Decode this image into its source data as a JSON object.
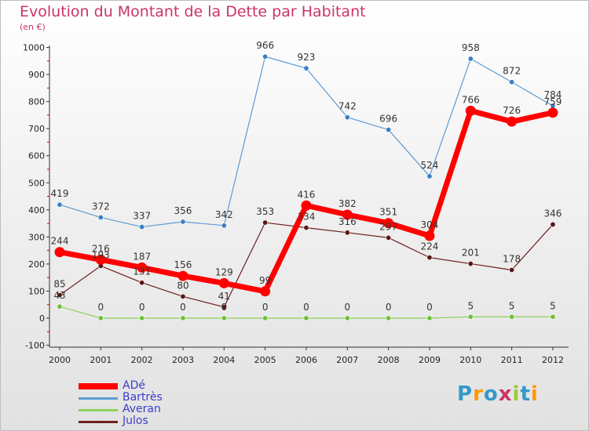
{
  "title": "Evolution du Montant de la Dette par Habitant",
  "subtitle": "(en €)",
  "logo_text": "Proxiti",
  "colors": {
    "title": "#cc3366",
    "ade": "#ff0000",
    "bartres": "#5b9bd5",
    "averan": "#8ed25a",
    "julos": "#6e1e1e",
    "axis": "#333333",
    "grid": "#d9d9d9"
  },
  "chart_data": {
    "type": "line",
    "x": [
      "2000",
      "2001",
      "2002",
      "2003",
      "2004",
      "2005",
      "2006",
      "2007",
      "2008",
      "2009",
      "2010",
      "2011",
      "2012"
    ],
    "yticks": [
      "-100",
      "0",
      "100",
      "200",
      "300",
      "400",
      "500",
      "600",
      "700",
      "800",
      "900",
      "1000"
    ],
    "ylim": [
      -100,
      1000
    ],
    "grid": false,
    "legend_position": "bottom-left",
    "series": [
      {
        "name": "Bartrès",
        "values": [
          419,
          372,
          337,
          356,
          342,
          966,
          923,
          742,
          696,
          524,
          958,
          872,
          784
        ],
        "labels": [
          "419",
          "372",
          "337",
          "356",
          "342",
          "966",
          "923",
          "742",
          "696",
          "524",
          "958",
          "872",
          "784"
        ]
      },
      {
        "name": "Julos",
        "values": [
          85,
          193,
          131,
          80,
          41,
          353,
          334,
          316,
          297,
          224,
          201,
          178,
          346
        ],
        "labels": [
          "85",
          "193",
          "131",
          "80",
          "41",
          "353",
          "334",
          "316",
          "297",
          "224",
          "201",
          "178",
          "346"
        ]
      },
      {
        "name": "Averan",
        "values": [
          43,
          0,
          0,
          0,
          0,
          0,
          0,
          0,
          0,
          0,
          5,
          5,
          5
        ],
        "labels": [
          "43",
          "0",
          "0",
          "0",
          "0",
          "0",
          "0",
          "0",
          "0",
          "0",
          "5",
          "5",
          "5"
        ]
      },
      {
        "name": "ADé",
        "values": [
          244,
          216,
          187,
          156,
          129,
          99,
          416,
          382,
          351,
          304,
          766,
          726,
          759
        ],
        "labels": [
          "244",
          "216",
          "187",
          "156",
          "129",
          "99",
          "416",
          "382",
          "351",
          "304",
          "766",
          "726",
          "759"
        ]
      }
    ]
  },
  "legend": [
    {
      "name": "ADé",
      "color": "#ff0000",
      "thickness": 8
    },
    {
      "name": "Bartrès",
      "color": "#5b9bd5",
      "thickness": 3
    },
    {
      "name": "Averan",
      "color": "#8ed25a",
      "thickness": 3
    },
    {
      "name": "Julos",
      "color": "#6e1e1e",
      "thickness": 3
    }
  ]
}
